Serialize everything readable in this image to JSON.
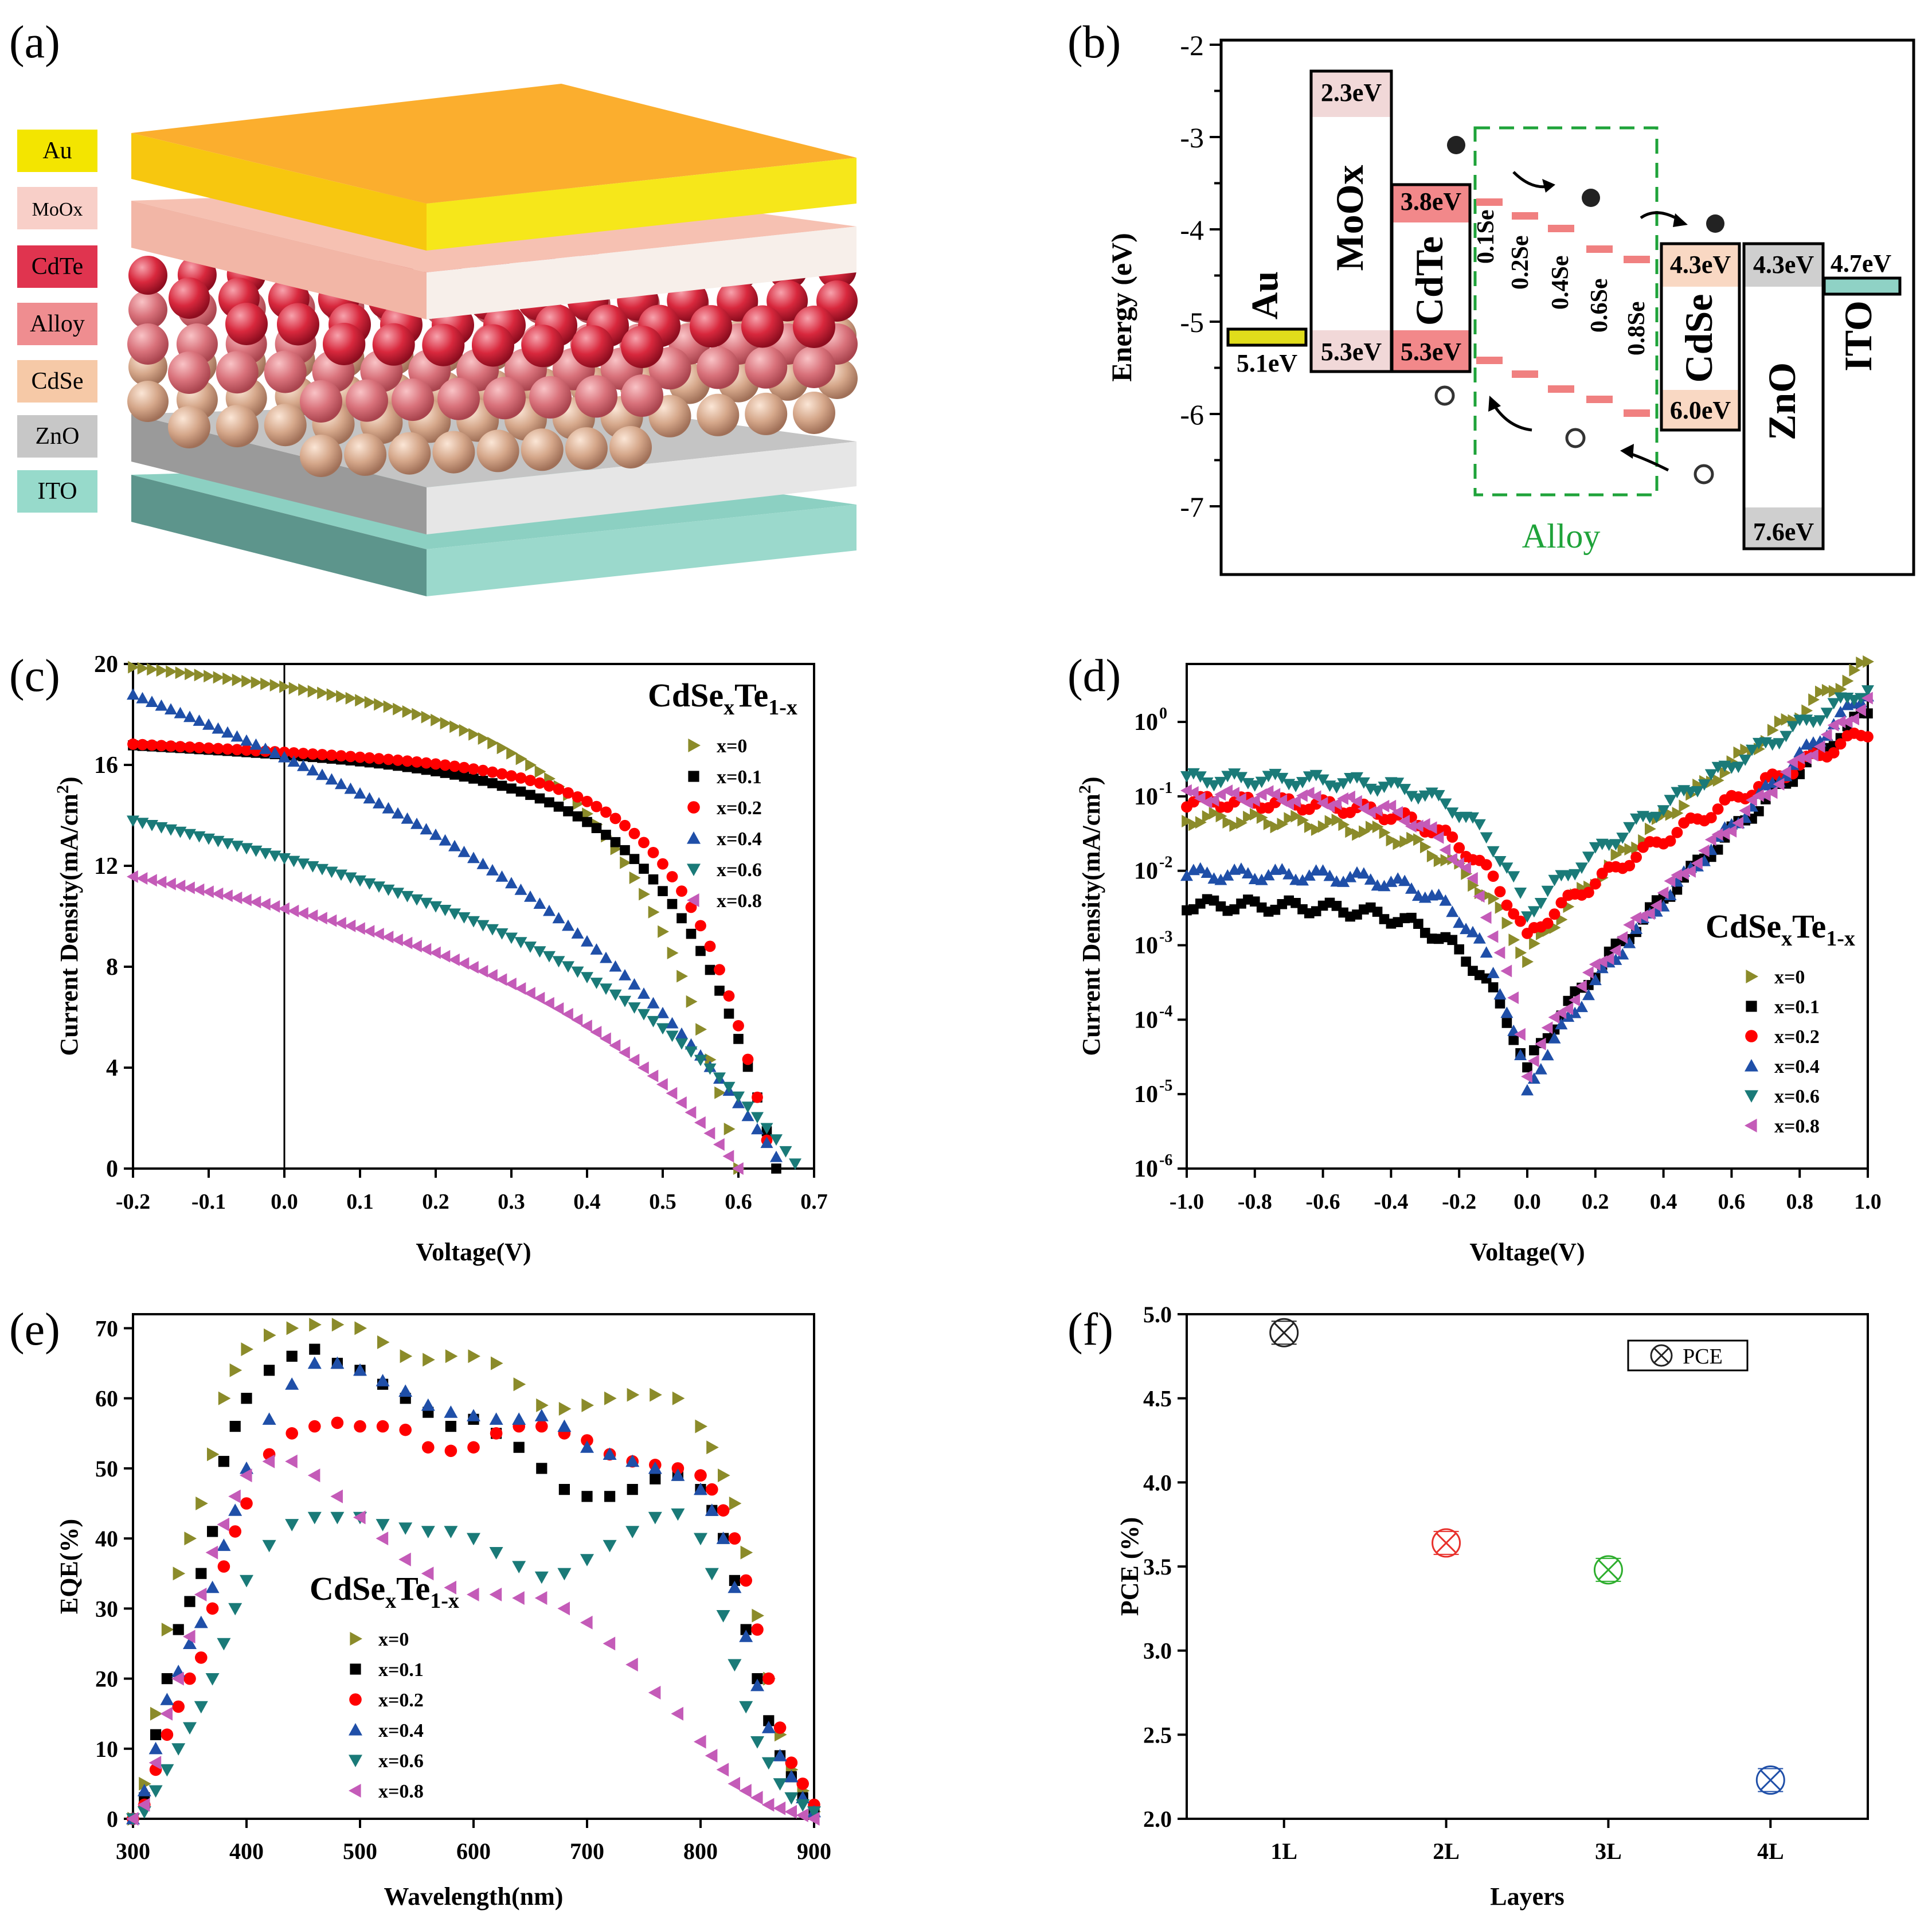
{
  "panels": {
    "a": {
      "label": "(a)"
    },
    "b": {
      "label": "(b)"
    },
    "c": {
      "label": "(c)"
    },
    "d": {
      "label": "(d)"
    },
    "e": {
      "label": "(e)"
    },
    "f": {
      "label": "(f)"
    }
  },
  "structure": {
    "layers": [
      {
        "name": "Au",
        "color": "#f3e500"
      },
      {
        "name": "MoOx",
        "color": "#f8cfc8"
      },
      {
        "name": "CdTe",
        "color": "#e0344f"
      },
      {
        "name": "Alloy",
        "color": "#ef8d90"
      },
      {
        "name": "CdSe",
        "color": "#f6c9a7"
      },
      {
        "name": "ZnO",
        "color": "#c7c7c7"
      },
      {
        "name": "ITO",
        "color": "#97dacb"
      }
    ]
  },
  "band": {
    "ylabel": "Energy (eV)",
    "ticks": [
      "-2",
      "-3",
      "-4",
      "-5",
      "-6",
      "-7"
    ],
    "alloy_label": "Alloy",
    "materials": {
      "au": {
        "name": "Au",
        "level": "5.1eV"
      },
      "moox": {
        "name": "MoOx",
        "top": "2.3eV",
        "bottom": "5.3eV"
      },
      "cdte": {
        "name": "CdTe",
        "top": "3.8eV",
        "bottom": "5.3eV"
      },
      "cdse": {
        "name": "CdSe",
        "top": "4.3eV",
        "bottom": "6.0eV"
      },
      "zno": {
        "name": "ZnO",
        "top": "4.3eV",
        "bottom": "7.6eV"
      },
      "ito": {
        "name": "ITO",
        "level": "4.7eV"
      }
    },
    "alloy_steps": [
      "0.1Se",
      "0.2Se",
      "0.4Se",
      "0.6Se",
      "0.8Se"
    ]
  },
  "legend_title_base": "CdSe",
  "legend_title_sub1": "x",
  "legend_title_mid": "Te",
  "legend_title_sub2": "1-x",
  "chart_data": [
    {
      "panel": "c",
      "type": "scatter",
      "xlabel": "Voltage(V)",
      "ylabel": "Current Density(mA/cm2)",
      "ylabel_main": "Current Density(mA/cm",
      "ylabel_sup": "2",
      "ylabel_end": ")",
      "xlim": [
        -0.2,
        0.7
      ],
      "ylim": [
        0,
        20
      ],
      "xticks": [
        -0.2,
        -0.1,
        0.0,
        0.1,
        0.2,
        0.3,
        0.4,
        0.5,
        0.6,
        0.7
      ],
      "xtick_labels": [
        "-0.2",
        "-0.1",
        "0.0",
        "0.1",
        "0.2",
        "0.3",
        "0.4",
        "0.5",
        "0.6",
        "0.7"
      ],
      "yticks": [
        0,
        4,
        8,
        12,
        16,
        20
      ],
      "ytick_labels": [
        "0",
        "4",
        "8",
        "12",
        "16",
        "20"
      ],
      "series": [
        {
          "name": "x=0",
          "color": "#8b8b2a",
          "marker": "tri-right",
          "jsc": 19.1,
          "voc": 0.6,
          "slope": 3.0,
          "ff": 7.5
        },
        {
          "name": "x=0.1",
          "color": "#000000",
          "marker": "square",
          "jsc": 16.4,
          "voc": 0.65,
          "slope": 1.5,
          "ff": 8.0
        },
        {
          "name": "x=0.2",
          "color": "#ff0000",
          "marker": "circle",
          "jsc": 16.5,
          "voc": 0.645,
          "slope": 1.5,
          "ff": 10.0
        },
        {
          "name": "x=0.4",
          "color": "#1f4fa8",
          "marker": "tri-up",
          "jsc": 16.3,
          "voc": 0.66,
          "slope": 9.0,
          "ff": 4.2
        },
        {
          "name": "x=0.6",
          "color": "#1a7a78",
          "marker": "tri-down",
          "jsc": 12.3,
          "voc": 0.68,
          "slope": 5.5,
          "ff": 4.5
        },
        {
          "name": "x=0.8",
          "color": "#c45bb8",
          "marker": "tri-left",
          "jsc": 10.3,
          "voc": 0.6,
          "slope": 4.5,
          "ff": 5.0
        }
      ]
    },
    {
      "panel": "d",
      "type": "scatter",
      "xlabel": "Voltage(V)",
      "ylabel": "Current Density(mA/cm2)",
      "ylabel_main": "Current Density(mA/cm",
      "ylabel_sup": "2",
      "ylabel_end": ")",
      "yscale": "log",
      "xlim": [
        -1.0,
        1.0
      ],
      "ylim": [
        1e-06,
        6
      ],
      "xticks": [
        -1.0,
        -0.8,
        -0.6,
        -0.4,
        -0.2,
        0.0,
        0.2,
        0.4,
        0.6,
        0.8,
        1.0
      ],
      "xtick_labels": [
        "-1.0",
        "-0.8",
        "-0.6",
        "-0.4",
        "-0.2",
        "0.0",
        "0.2",
        "0.4",
        "0.6",
        "0.8",
        "1.0"
      ],
      "ytick_exps": [
        "-6",
        "-5",
        "-4",
        "-3",
        "-2",
        "-1",
        "0"
      ],
      "ytick_base": "10",
      "series": [
        {
          "name": "x=0",
          "color": "#8b8b2a",
          "marker": "tri-right",
          "jleft": 0.05,
          "jmin": 0.0006,
          "jright": 6.0,
          "wl": 0.55,
          "wr": 0.7
        },
        {
          "name": "x=0.1",
          "color": "#000000",
          "marker": "square",
          "jleft": 0.0035,
          "jmin": 2e-05,
          "jright": 1.4,
          "wl": 0.45,
          "wr": 0.28
        },
        {
          "name": "x=0.2",
          "color": "#ff0000",
          "marker": "circle",
          "jleft": 0.085,
          "jmin": 0.0012,
          "jright": 0.75,
          "wl": 0.5,
          "wr": 0.42
        },
        {
          "name": "x=0.4",
          "color": "#1f4fa8",
          "marker": "tri-up",
          "jleft": 0.009,
          "jmin": 1e-05,
          "jright": 2.6,
          "wl": 0.35,
          "wr": 0.28
        },
        {
          "name": "x=0.6",
          "color": "#1a7a78",
          "marker": "tri-down",
          "jleft": 0.17,
          "jmin": 0.0025,
          "jright": 2.8,
          "wl": 0.4,
          "wr": 0.42
        },
        {
          "name": "x=0.8",
          "color": "#c45bb8",
          "marker": "tri-left",
          "jleft": 0.1,
          "jmin": 2e-05,
          "jright": 1.9,
          "wl": 0.4,
          "wr": 0.38
        }
      ]
    },
    {
      "panel": "e",
      "type": "scatter",
      "xlabel": "Wavelength(nm)",
      "ylabel": "EQE(%)",
      "xlim": [
        300,
        900
      ],
      "ylim": [
        0,
        72
      ],
      "xticks": [
        300,
        400,
        500,
        600,
        700,
        800,
        900
      ],
      "xtick_labels": [
        "300",
        "400",
        "500",
        "600",
        "700",
        "800",
        "900"
      ],
      "yticks": [
        0,
        10,
        20,
        30,
        40,
        50,
        60,
        70
      ],
      "ytick_labels": [
        "0",
        "10",
        "20",
        "30",
        "40",
        "50",
        "60",
        "70"
      ],
      "series": [
        {
          "name": "x=0",
          "color": "#8b8b2a",
          "marker": "tri-right",
          "wl": [
            300,
            310,
            320,
            330,
            340,
            350,
            360,
            370,
            380,
            390,
            400,
            420,
            440,
            460,
            480,
            500,
            520,
            540,
            560,
            580,
            600,
            620,
            640,
            660,
            680,
            700,
            720,
            740,
            760,
            780,
            800,
            810,
            820,
            830,
            840,
            850,
            860,
            870,
            880,
            890,
            900
          ],
          "eqe": [
            0,
            5,
            15,
            27,
            35,
            40,
            45,
            52,
            60,
            64,
            67,
            69,
            70,
            70.5,
            70.5,
            70,
            68,
            66,
            65.5,
            66,
            66,
            65,
            62,
            59,
            58.5,
            59,
            60,
            60.5,
            60.5,
            60,
            56,
            53,
            49,
            45,
            38,
            29,
            20,
            12,
            7,
            4,
            1
          ]
        },
        {
          "name": "x=0.1",
          "color": "#000000",
          "marker": "square",
          "wl": [
            300,
            310,
            320,
            330,
            340,
            350,
            360,
            370,
            380,
            390,
            400,
            420,
            440,
            460,
            480,
            500,
            520,
            540,
            560,
            580,
            600,
            620,
            640,
            660,
            680,
            700,
            720,
            740,
            760,
            780,
            800,
            810,
            820,
            830,
            840,
            850,
            860,
            870,
            880,
            890,
            900
          ],
          "eqe": [
            0,
            3,
            12,
            20,
            27,
            31,
            35,
            41,
            51,
            56,
            60,
            64,
            66,
            67,
            65,
            64,
            62,
            60,
            58,
            56,
            57,
            55,
            53,
            50,
            47,
            46,
            46,
            47,
            48.5,
            49,
            47,
            44,
            40,
            34,
            27,
            20,
            14,
            9,
            6,
            3,
            1
          ]
        },
        {
          "name": "x=0.2",
          "color": "#ff0000",
          "marker": "circle",
          "wl": [
            300,
            310,
            320,
            330,
            340,
            350,
            360,
            370,
            380,
            390,
            400,
            420,
            440,
            460,
            480,
            500,
            520,
            540,
            560,
            580,
            600,
            620,
            640,
            660,
            680,
            700,
            720,
            740,
            760,
            780,
            800,
            810,
            820,
            830,
            840,
            850,
            860,
            870,
            880,
            890,
            900
          ],
          "eqe": [
            0,
            2,
            7,
            12,
            16,
            20,
            23,
            30,
            36,
            41,
            45,
            52,
            55,
            56,
            56.5,
            56,
            56,
            55.5,
            53,
            52.5,
            53,
            55,
            56,
            56,
            55,
            54,
            52,
            51,
            50.5,
            50,
            49,
            47,
            44,
            40,
            34,
            27,
            20,
            13,
            8,
            5,
            2
          ]
        },
        {
          "name": "x=0.4",
          "color": "#1f4fa8",
          "marker": "tri-up",
          "wl": [
            300,
            310,
            320,
            330,
            340,
            350,
            360,
            370,
            380,
            390,
            400,
            420,
            440,
            460,
            480,
            500,
            520,
            540,
            560,
            580,
            600,
            620,
            640,
            660,
            680,
            700,
            720,
            740,
            760,
            780,
            800,
            810,
            820,
            830,
            840,
            850,
            860,
            870,
            880,
            890,
            900
          ],
          "eqe": [
            0,
            4,
            10,
            17,
            21,
            25,
            28,
            33,
            39,
            44,
            50,
            57,
            62,
            65,
            65,
            64,
            62.5,
            61,
            59,
            58,
            57.5,
            57,
            57,
            57.5,
            56,
            53,
            52,
            51,
            50,
            49,
            47,
            44,
            40,
            33,
            26,
            19,
            13,
            9,
            6,
            3,
            1
          ]
        },
        {
          "name": "x=0.6",
          "color": "#1a7a78",
          "marker": "tri-down",
          "wl": [
            300,
            310,
            320,
            330,
            340,
            350,
            360,
            370,
            380,
            390,
            400,
            420,
            440,
            460,
            480,
            500,
            520,
            540,
            560,
            580,
            600,
            620,
            640,
            660,
            680,
            700,
            720,
            740,
            760,
            780,
            800,
            810,
            820,
            830,
            840,
            850,
            860,
            870,
            880,
            890,
            900
          ],
          "eqe": [
            0,
            1,
            4,
            7,
            10,
            13,
            16,
            20,
            25,
            30,
            34,
            39,
            42,
            43,
            43,
            43,
            42,
            41.5,
            41,
            41,
            40,
            38,
            36,
            34.5,
            35,
            37,
            39,
            41,
            43,
            43.5,
            40,
            35,
            29,
            22,
            16,
            11,
            8,
            5,
            3,
            2,
            1
          ]
        },
        {
          "name": "x=0.8",
          "color": "#c45bb8",
          "marker": "tri-left",
          "wl": [
            300,
            310,
            320,
            330,
            340,
            350,
            360,
            370,
            380,
            390,
            400,
            420,
            440,
            460,
            480,
            500,
            520,
            540,
            560,
            580,
            600,
            620,
            640,
            660,
            680,
            700,
            720,
            740,
            760,
            780,
            800,
            810,
            820,
            830,
            840,
            850,
            860,
            870,
            880,
            890,
            900
          ],
          "eqe": [
            0,
            2,
            8,
            15,
            20,
            26,
            32,
            38,
            42,
            46,
            49,
            51,
            51,
            49,
            46,
            43,
            40,
            37,
            35,
            33,
            32,
            32,
            31.5,
            31.5,
            30,
            28,
            25,
            22,
            18,
            15,
            11,
            9,
            7,
            5,
            4,
            3,
            2,
            1.5,
            1,
            0.5,
            0
          ]
        }
      ]
    },
    {
      "panel": "f",
      "type": "scatter",
      "xlabel": "Layers",
      "ylabel": "PCE (%)",
      "legend": "PCE",
      "categories": [
        "1L",
        "2L",
        "3L",
        "4L"
      ],
      "values": [
        4.89,
        3.64,
        3.48,
        2.23
      ],
      "colors": [
        "#222222",
        "#e8312c",
        "#2eae2e",
        "#1f4fa8"
      ],
      "ylim": [
        2.0,
        5.0
      ],
      "yticks": [
        2.0,
        2.5,
        3.0,
        3.5,
        4.0,
        4.5,
        5.0
      ],
      "ytick_labels": [
        "2.0",
        "2.5",
        "3.0",
        "3.5",
        "4.0",
        "4.5",
        "5.0"
      ]
    }
  ]
}
